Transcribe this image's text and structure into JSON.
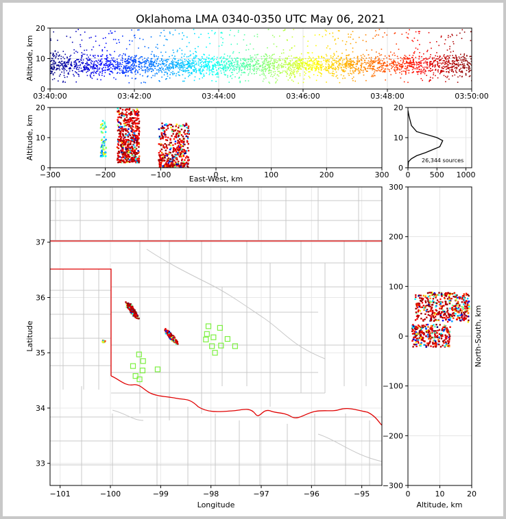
{
  "title": "Oklahoma LMA 0340-0350 UTC May 06, 2021",
  "chart_data": [
    {
      "type": "scatter",
      "name": "time-height",
      "ylabel": "Altitude, km",
      "ylim": [
        0,
        20
      ],
      "yticks": [
        "0",
        "10",
        "20"
      ],
      "xticks": [
        "03:40:00",
        "03:42:00",
        "03:44:00",
        "03:46:00",
        "03:48:00",
        "03:50:00"
      ],
      "color_scale": "jet (by time)"
    },
    {
      "type": "scatter",
      "name": "east-west-height",
      "xlabel": "East-West, km",
      "ylabel": "Altitude, km",
      "xlim": [
        -300,
        300
      ],
      "ylim": [
        0,
        20
      ],
      "xticks": [
        "−300",
        "−200",
        "−100",
        "0",
        "100",
        "200",
        "300"
      ],
      "yticks": [
        "0",
        "10",
        "20"
      ],
      "clusters": [
        {
          "x": [
            -210,
            -200
          ],
          "y": [
            4,
            16
          ]
        },
        {
          "x": [
            -180,
            -140
          ],
          "y": [
            2,
            20
          ]
        },
        {
          "x": [
            -105,
            -50
          ],
          "y": [
            0,
            15
          ]
        }
      ]
    },
    {
      "type": "line",
      "name": "source-histogram",
      "xlim": [
        0,
        1100
      ],
      "ylim": [
        0,
        20
      ],
      "xticks": [
        "0",
        "500",
        "1000"
      ],
      "yticks": [
        "0",
        "10",
        "20"
      ],
      "annotation": "26,344 sources",
      "x": [
        0,
        20,
        60,
        150,
        500,
        600,
        550,
        300,
        150,
        60,
        10,
        0
      ],
      "y": [
        19,
        17,
        14,
        12,
        10,
        9,
        7,
        5,
        4,
        3,
        2,
        0
      ]
    },
    {
      "type": "scatter",
      "name": "plan-view",
      "xlabel": "Longitude",
      "ylabel": "Latitude",
      "xlim": [
        -101.2,
        -94.6
      ],
      "ylim": [
        32.6,
        38.0
      ],
      "xticks": [
        "−101",
        "−100",
        "−99",
        "−98",
        "−97",
        "−96",
        "−95"
      ],
      "yticks": [
        "33",
        "34",
        "35",
        "36",
        "37"
      ],
      "stations": [
        [
          -98.05,
          35.48
        ],
        [
          -97.82,
          35.45
        ],
        [
          -98.08,
          35.34
        ],
        [
          -97.95,
          35.28
        ],
        [
          -98.1,
          35.24
        ],
        [
          -97.67,
          35.25
        ],
        [
          -97.8,
          35.13
        ],
        [
          -97.52,
          35.12
        ],
        [
          -97.98,
          35.12
        ],
        [
          -97.92,
          35.0
        ],
        [
          -99.43,
          34.97
        ],
        [
          -99.35,
          34.85
        ],
        [
          -99.55,
          34.76
        ],
        [
          -99.36,
          34.68
        ],
        [
          -99.06,
          34.7
        ],
        [
          -99.5,
          34.58
        ],
        [
          -99.42,
          34.52
        ]
      ]
    },
    {
      "type": "scatter",
      "name": "north-south-height",
      "xlabel": "Altitude, km",
      "ylabel": "North-South, km",
      "xlim": [
        0,
        20
      ],
      "ylim": [
        -300,
        300
      ],
      "xticks": [
        "0",
        "10",
        "20"
      ],
      "yticks": [
        "−300",
        "−200",
        "−100",
        "0",
        "100",
        "200",
        "300"
      ]
    }
  ]
}
